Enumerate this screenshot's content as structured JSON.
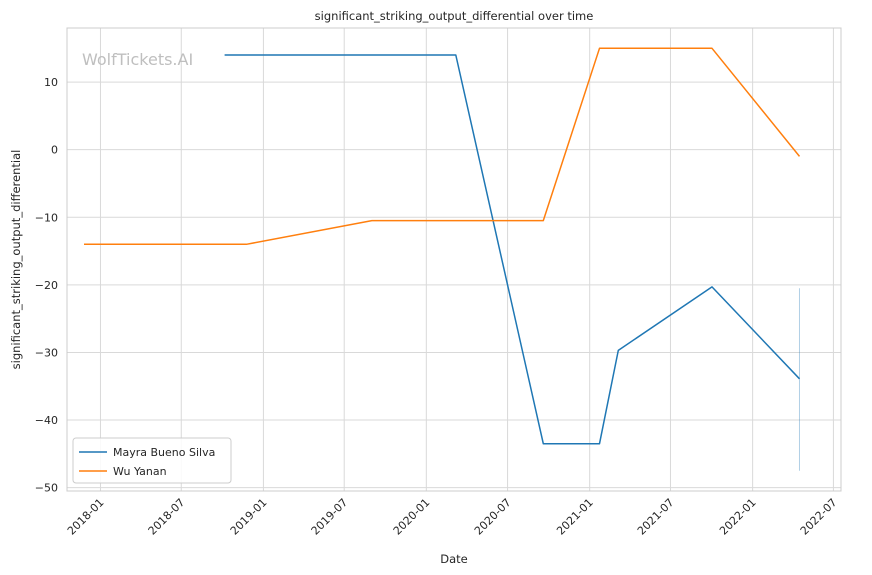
{
  "chart_data": {
    "type": "line",
    "title": "significant_striking_output_differential over time",
    "xlabel": "Date",
    "ylabel": "significant_striking_output_differential",
    "watermark": "WolfTickets.AI",
    "xlim": [
      "2017-10-18",
      "2022-07-18"
    ],
    "ylim": [
      -50.5,
      18
    ],
    "x_ticks": [
      "2018-01",
      "2018-07",
      "2019-01",
      "2019-07",
      "2020-01",
      "2020-07",
      "2021-01",
      "2021-07",
      "2022-01",
      "2022-07"
    ],
    "y_ticks": [
      10,
      0,
      -10,
      -20,
      -30,
      -40,
      -50
    ],
    "y_tick_labels": [
      "10",
      "0",
      "−10",
      "−20",
      "−30",
      "−40",
      "−50"
    ],
    "grid": true,
    "legend_position": "lower-left",
    "series": [
      {
        "name": "Mayra Bueno Silva",
        "color": "#1f77b4",
        "points": [
          {
            "x": "2018-10-06",
            "y": 14
          },
          {
            "x": "2020-03-07",
            "y": 14
          },
          {
            "x": "2020-09-19",
            "y": -43.5
          },
          {
            "x": "2021-01-23",
            "y": -43.5
          },
          {
            "x": "2021-03-06",
            "y": -29.7
          },
          {
            "x": "2021-10-02",
            "y": -20.3
          },
          {
            "x": "2022-04-16",
            "y": -33.9
          }
        ]
      },
      {
        "name": "Wu Yanan",
        "color": "#ff7f0e",
        "points": [
          {
            "x": "2017-11-25",
            "y": -14
          },
          {
            "x": "2018-11-24",
            "y": -14
          },
          {
            "x": "2019-09-01",
            "y": -10.5
          },
          {
            "x": "2020-09-19",
            "y": -10.5
          },
          {
            "x": "2021-01-23",
            "y": 15
          },
          {
            "x": "2021-10-02",
            "y": 15
          },
          {
            "x": "2022-04-16",
            "y": -1
          }
        ]
      }
    ],
    "annotation_lines": [
      {
        "x": "2022-04-16",
        "y_from": -47.5,
        "y_to": -20.5,
        "color": "#1f77b4"
      }
    ]
  }
}
